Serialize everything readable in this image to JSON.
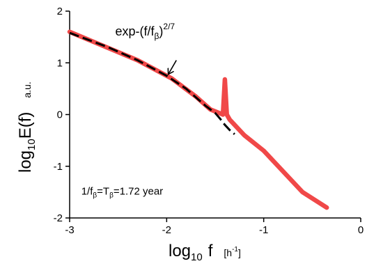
{
  "chart_data": {
    "type": "line",
    "title": "",
    "xlabel": {
      "main": "log",
      "sub": "10",
      "var": "f",
      "unit": "[h",
      "unit_sup": "-1",
      "unit_end": "]"
    },
    "ylabel": {
      "main": "log",
      "sub": "10",
      "var": "E(f)",
      "unit": "a.u."
    },
    "xlim": [
      -3,
      0
    ],
    "ylim": [
      -2,
      2
    ],
    "xticks": [
      -3,
      -2,
      -1,
      0
    ],
    "yticks": [
      -2,
      -1,
      0,
      1,
      2
    ],
    "xtick_labels": [
      "-3",
      "-2",
      "-1",
      "0"
    ],
    "ytick_labels": [
      "-2",
      "-1",
      "0",
      "1",
      "2"
    ],
    "grid": false,
    "series": [
      {
        "color": "#f04848",
        "style": "solid",
        "x": [
          -3.0,
          -2.3,
          -1.95,
          -1.7,
          -1.55,
          -1.42,
          -1.4,
          -1.38,
          -1.35,
          -1.2,
          -1.0,
          -0.6,
          -0.35
        ],
        "y": [
          1.6,
          1.05,
          0.7,
          0.35,
          0.1,
          0.0,
          0.68,
          0.0,
          -0.1,
          -0.4,
          -0.7,
          -1.5,
          -1.8
        ]
      },
      {
        "color": "#000000",
        "style": "dashed",
        "x": [
          -3.0,
          -2.6,
          -2.3,
          -2.0,
          -1.8,
          -1.6,
          -1.5,
          -1.45,
          -1.4,
          -1.35,
          -1.3
        ],
        "y": [
          1.58,
          1.3,
          1.05,
          0.75,
          0.5,
          0.17,
          0.03,
          -0.08,
          -0.2,
          -0.3,
          -0.38
        ]
      }
    ],
    "annotations": [
      {
        "text_main": "exp-(f/f",
        "text_sub": "β",
        "text_end": ")",
        "text_sup": "2/7",
        "x": -2.53,
        "y": 1.53
      },
      {
        "text_p1": "1/f",
        "text_s1": "β",
        "text_p2": "=T",
        "text_s2": "β",
        "text_p3": "=1.72 year",
        "x": -2.88,
        "y": -1.55
      }
    ],
    "arrow": {
      "from": [
        -1.9,
        1.05
      ],
      "to": [
        -1.98,
        0.79
      ]
    }
  }
}
